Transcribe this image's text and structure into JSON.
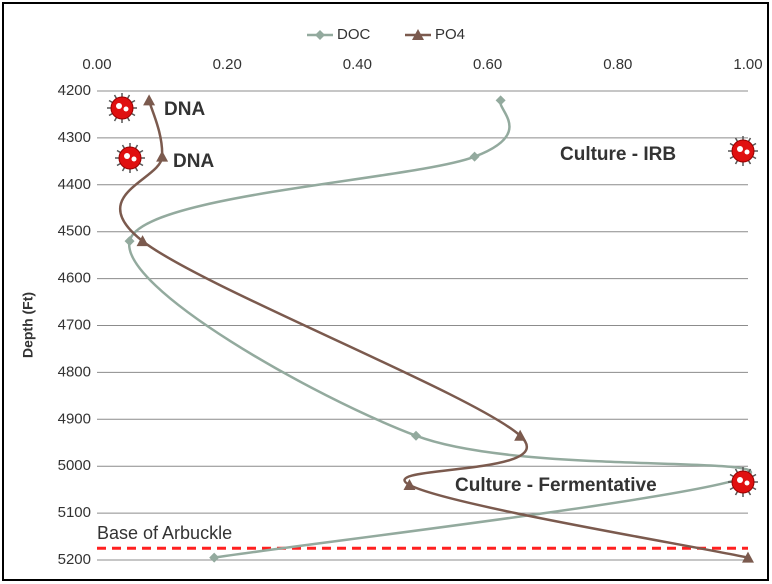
{
  "chart_data": {
    "type": "scatter",
    "y_axis_title": "Depth (Ft)",
    "series": [
      {
        "name": "DOC",
        "color": "#93aa9e",
        "marker": "diamond",
        "x": [
          0.62,
          0.58,
          0.05,
          0.49,
          1.0,
          0.18
        ],
        "values": [
          4220,
          4340,
          4520,
          4935,
          5020,
          5195
        ]
      },
      {
        "name": "PO4",
        "color": "#7b5a4e",
        "marker": "triangle",
        "x": [
          0.08,
          0.1,
          0.07,
          0.65,
          0.48,
          1.0
        ],
        "values": [
          4220,
          4340,
          4520,
          4935,
          5040,
          5195
        ]
      }
    ],
    "xlim": [
      0,
      1
    ],
    "xticks": [
      {
        "value": 0,
        "label": "0.00"
      },
      {
        "value": 0.2,
        "label": "0.20"
      },
      {
        "value": 0.4,
        "label": "0.40"
      },
      {
        "value": 0.6,
        "label": "0.60"
      },
      {
        "value": 0.8,
        "label": "0.80"
      },
      {
        "value": 1,
        "label": "1.00"
      }
    ],
    "ylim": [
      4200,
      5200
    ],
    "yticks": [
      4200,
      4300,
      4400,
      4500,
      4600,
      4700,
      4800,
      4900,
      5000,
      5100,
      5200
    ],
    "y_inverted": true,
    "grid": true,
    "legend": "top",
    "reference_line": {
      "label": "Base of Arbuckle",
      "value": 5175,
      "color": "#ff2020"
    },
    "annotations": [
      "DNA",
      "DNA",
      "Culture - IRB",
      "Culture - Fermentative"
    ]
  }
}
